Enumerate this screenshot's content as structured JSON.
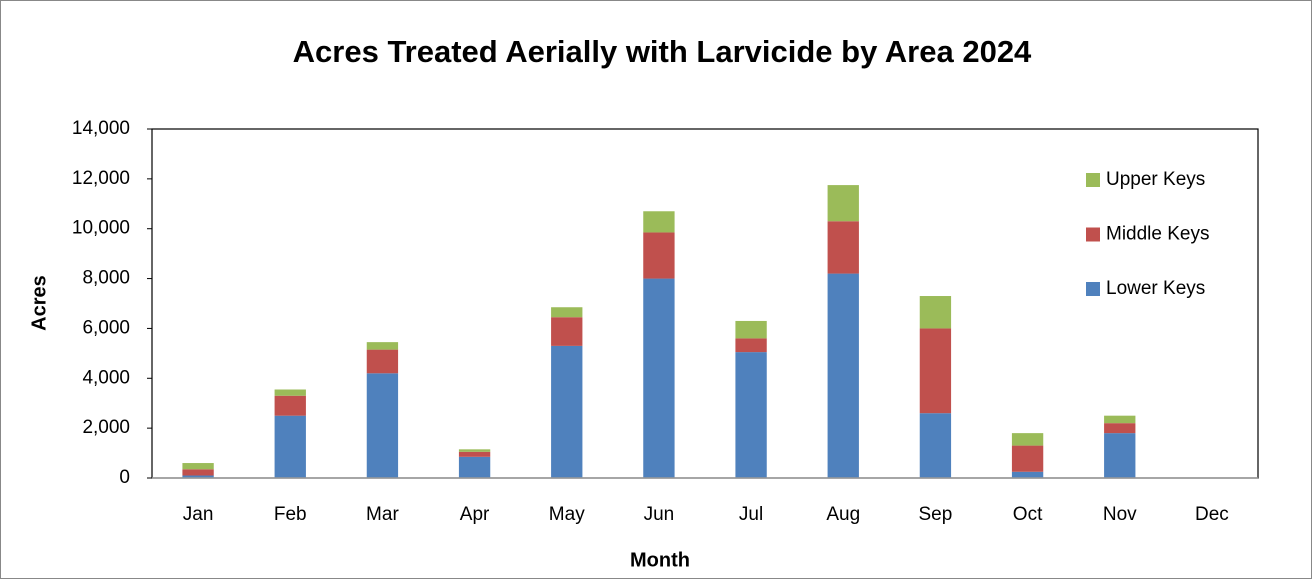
{
  "chart_data": {
    "type": "stacked_bar",
    "title": "Acres Treated Aerially with Larvicide by Area 2024",
    "x_label": "Month",
    "y_label": "Acres",
    "categories": [
      "Jan",
      "Feb",
      "Mar",
      "Apr",
      "May",
      "Jun",
      "Jul",
      "Aug",
      "Sep",
      "Oct",
      "Nov",
      "Dec"
    ],
    "series": [
      {
        "name": "Lower Keys",
        "color": "#4f81bd",
        "values": [
          100,
          2500,
          4200,
          850,
          5300,
          8000,
          5050,
          8200,
          2600,
          250,
          1800,
          null
        ]
      },
      {
        "name": "Middle Keys",
        "color": "#c0504d",
        "values": [
          250,
          800,
          950,
          200,
          1150,
          1850,
          550,
          2100,
          3400,
          1050,
          400,
          null
        ]
      },
      {
        "name": "Upper Keys",
        "color": "#9bbb59",
        "values": [
          250,
          250,
          300,
          100,
          400,
          850,
          700,
          1450,
          1300,
          500,
          300,
          null
        ]
      }
    ],
    "ylim": [
      0,
      14000
    ],
    "yticks": [
      0,
      {
        "value": 2000,
        "label": "2,000"
      },
      {
        "value": 4000,
        "label": "4,000"
      },
      {
        "value": 6000,
        "label": "6,000"
      },
      {
        "value": 8000,
        "label": "8,000"
      },
      {
        "value": 10000,
        "label": "10,000"
      },
      {
        "value": 12000,
        "label": "12,000"
      },
      {
        "value": 14000,
        "label": "14,000"
      }
    ],
    "grid": false,
    "legend": "right"
  }
}
